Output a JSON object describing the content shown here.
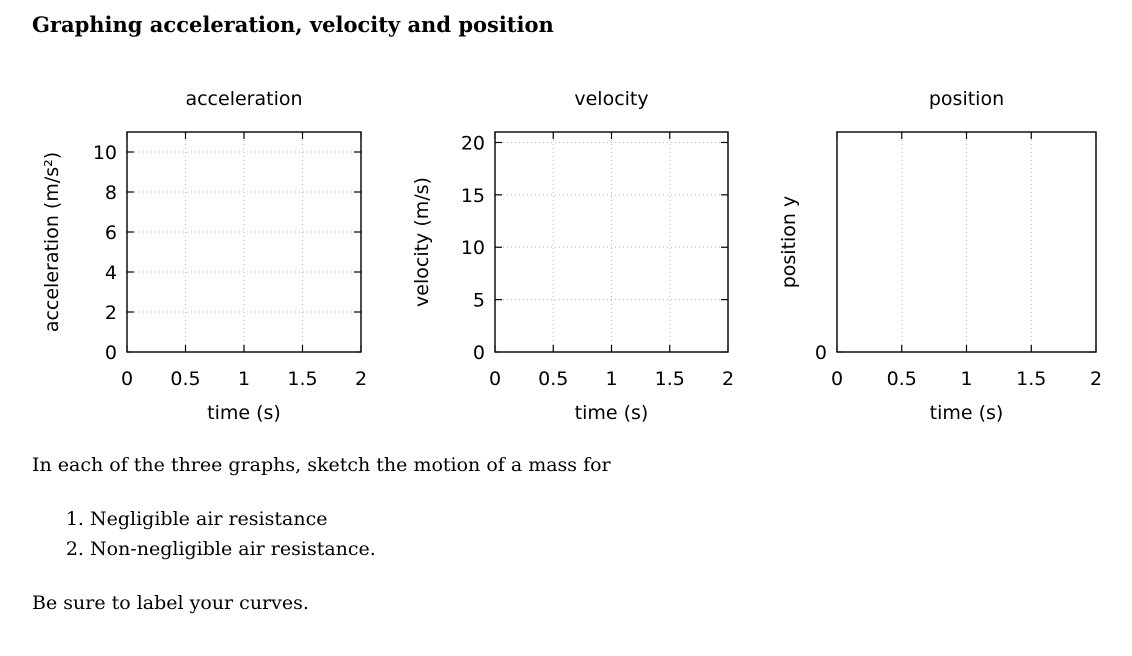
{
  "page_title": "Graphing acceleration, velocity and position",
  "chart_data": [
    {
      "type": "line",
      "title": "acceleration",
      "xlabel": "time (s)",
      "ylabel": "acceleration (m/s²)",
      "xlim": [
        0,
        2
      ],
      "ylim": [
        0,
        11
      ],
      "xticks": [
        0,
        0.5,
        1,
        1.5,
        2
      ],
      "xtick_labels": [
        "0",
        "0.5",
        "1",
        "1.5",
        "2"
      ],
      "yticks": [
        0,
        2,
        4,
        6,
        8,
        10
      ],
      "ytick_labels": [
        "0",
        "2",
        "4",
        "6",
        "8",
        "10"
      ],
      "grid": true,
      "series": []
    },
    {
      "type": "line",
      "title": "velocity",
      "xlabel": "time (s)",
      "ylabel": "velocity (m/s)",
      "xlim": [
        0,
        2
      ],
      "ylim": [
        0,
        21
      ],
      "xticks": [
        0,
        0.5,
        1,
        1.5,
        2
      ],
      "xtick_labels": [
        "0",
        "0.5",
        "1",
        "1.5",
        "2"
      ],
      "yticks": [
        0,
        5,
        10,
        15,
        20
      ],
      "ytick_labels": [
        "0",
        "5",
        "10",
        "15",
        "20"
      ],
      "grid": true,
      "series": []
    },
    {
      "type": "line",
      "title": "position",
      "xlabel": "time (s)",
      "ylabel": "position y",
      "xlim": [
        0,
        2
      ],
      "ylim": [
        0,
        1
      ],
      "xticks": [
        0,
        0.5,
        1,
        1.5,
        2
      ],
      "xtick_labels": [
        "0",
        "0.5",
        "1",
        "1.5",
        "2"
      ],
      "yticks": [
        0
      ],
      "ytick_labels": [
        "0"
      ],
      "grid": true,
      "series": []
    }
  ],
  "instructions": {
    "intro": "In each of the three graphs, sketch the motion of a mass for",
    "items": [
      "Negligible air resistance",
      "Non-negligible air resistance."
    ],
    "outro": "Be sure to label your curves."
  }
}
